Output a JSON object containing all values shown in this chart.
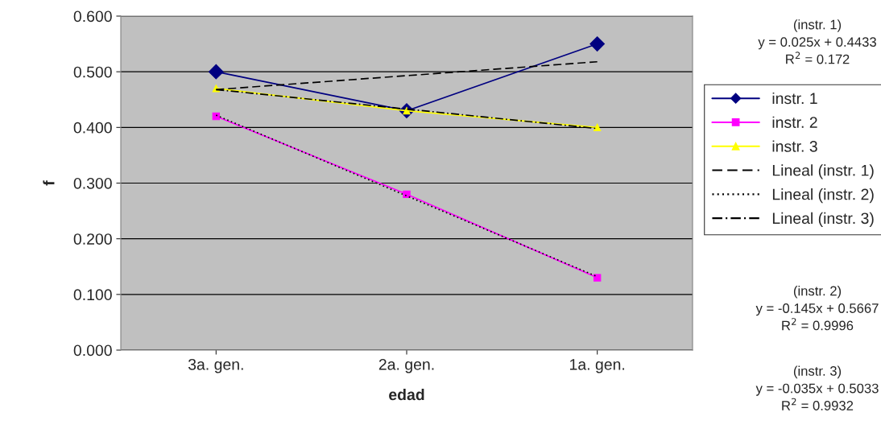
{
  "chart_data": {
    "type": "line",
    "xlabel": "edad",
    "ylabel": "f",
    "categories": [
      "3a. gen.",
      "2a. gen.",
      "1a. gen."
    ],
    "series": [
      {
        "name": "instr. 1",
        "color": "#000080",
        "values": [
          0.5,
          0.43,
          0.55
        ],
        "marker": "diamond",
        "line_style": "solid"
      },
      {
        "name": "instr. 2",
        "color": "#ff00ff",
        "values": [
          0.42,
          0.28,
          0.13
        ],
        "marker": "square",
        "line_style": "solid"
      },
      {
        "name": "instr. 3",
        "color": "#ffff00",
        "values": [
          0.47,
          0.43,
          0.4
        ],
        "marker": "triangle",
        "line_style": "solid"
      },
      {
        "name": "Lineal (instr. 1)",
        "color": "#000000",
        "values": [
          0.468,
          0.493,
          0.518
        ],
        "marker": "none",
        "line_style": "dashed"
      },
      {
        "name": "Lineal (instr. 2)",
        "color": "#000000",
        "values": [
          0.422,
          0.277,
          0.132
        ],
        "marker": "none",
        "line_style": "dotted"
      },
      {
        "name": "Lineal (instr. 3)",
        "color": "#000000",
        "values": [
          0.468,
          0.433,
          0.398
        ],
        "marker": "none",
        "line_style": "dashdot"
      }
    ],
    "ylim": [
      0,
      0.6
    ],
    "yticks": [
      {
        "value": 0,
        "label": "0.000"
      },
      {
        "value": 0.1,
        "label": "0.100"
      },
      {
        "value": 0.2,
        "label": "0.200"
      },
      {
        "value": 0.3,
        "label": "0.300"
      },
      {
        "value": 0.4,
        "label": "0.400"
      },
      {
        "value": 0.5,
        "label": "0.500"
      },
      {
        "value": 0.6,
        "label": "0.600"
      }
    ],
    "grid": "y",
    "legend": "right",
    "annotations": [
      "(instr. 1)\ny = 0.025x + 0.4433\nR$^{2}$ = 0.172",
      "(instr. 2)\ny = -0.145x + 0.5667\nR$^{2}$ = 0.9996",
      "(instr. 3)\ny = -0.035x + 0.5033\nR$^{2}$ = 0.9932"
    ]
  }
}
